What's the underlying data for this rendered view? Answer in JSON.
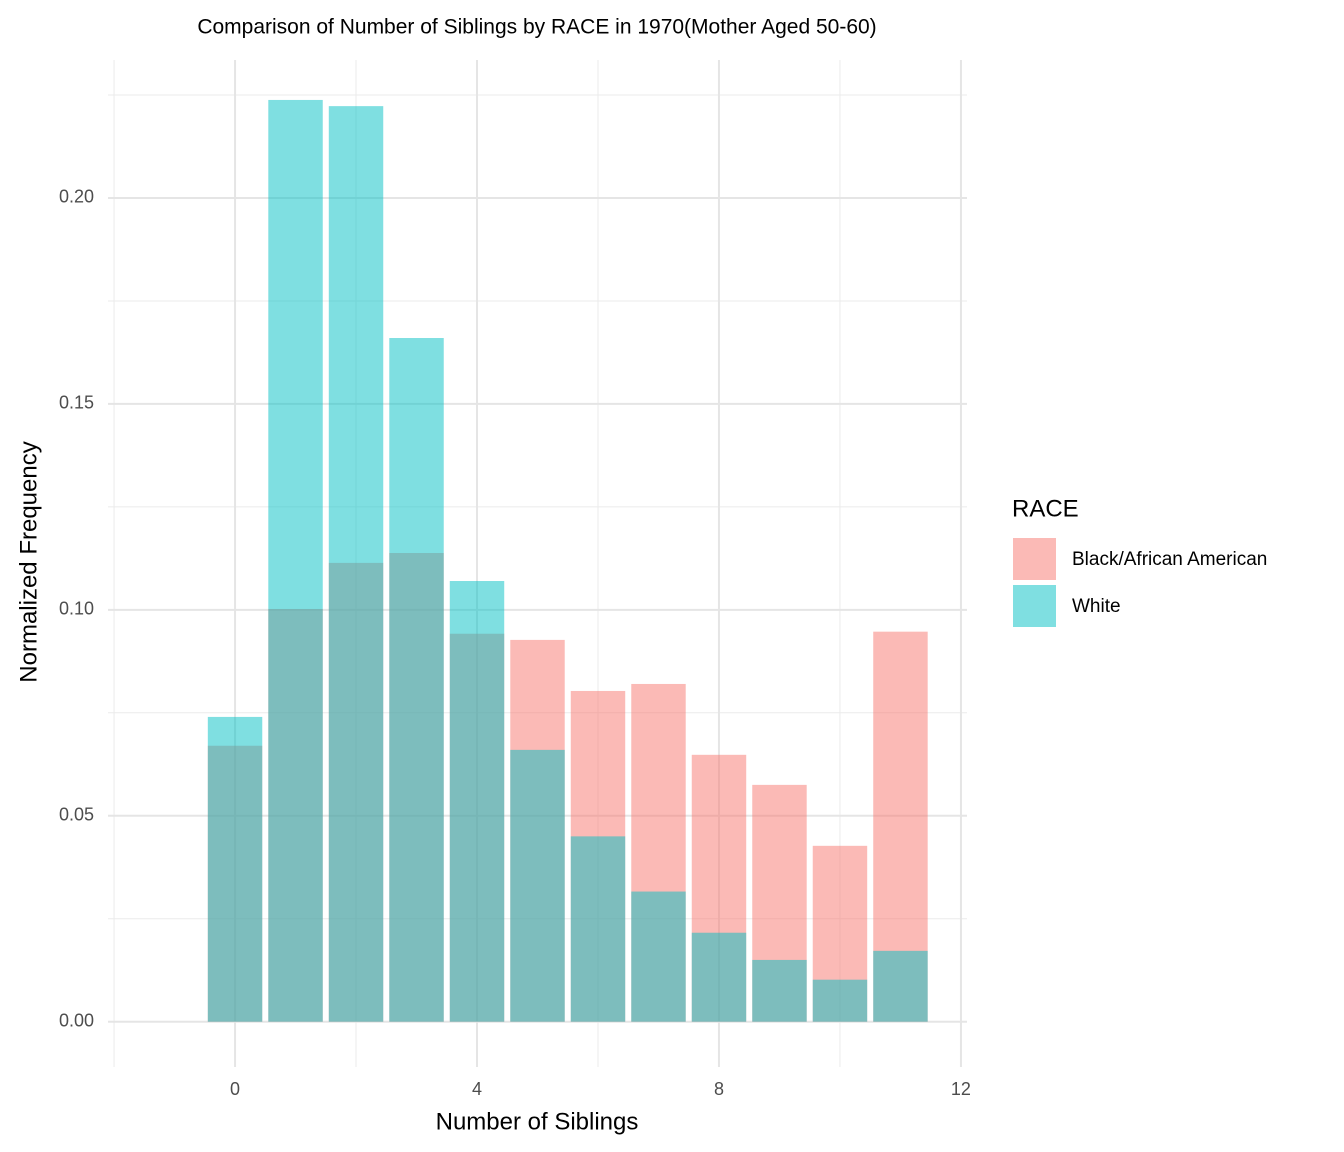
{
  "chart_data": {
    "type": "bar",
    "title": "Comparison of Number of Siblings by RACE in 1970(Mother Aged 50-60)",
    "x_label": "Number of Siblings",
    "y_label": "Normalized Frequency",
    "legend_title": "RACE",
    "legend_position": "right",
    "grid": true,
    "bar_width": 0.9,
    "opacity": 0.5,
    "x": [
      0,
      1,
      2,
      3,
      4,
      5,
      6,
      7,
      8,
      9,
      10,
      11
    ],
    "series": [
      {
        "name": "Black/African American",
        "color": "#F8766D",
        "values": [
          0.067,
          0.1002,
          0.1114,
          0.1138,
          0.0942,
          0.0927,
          0.0803,
          0.082,
          0.0648,
          0.0575,
          0.0427,
          0.0947
        ]
      },
      {
        "name": "White",
        "color": "#00BFC4",
        "values": [
          0.074,
          0.2238,
          0.2223,
          0.166,
          0.107,
          0.066,
          0.045,
          0.0316,
          0.0216,
          0.015,
          0.0102,
          0.0172
        ]
      }
    ],
    "xlim": [
      -2.1,
      12.1
    ],
    "xticks": [
      0,
      4,
      8,
      12
    ],
    "x_minor_ticks": [
      -2,
      2,
      6,
      10
    ],
    "ylim": [
      -0.011,
      0.2335
    ],
    "yticks": [
      {
        "value": 0,
        "label": "0.00"
      },
      {
        "value": 0.05,
        "label": "0.05"
      },
      {
        "value": 0.1,
        "label": "0.10"
      },
      {
        "value": 0.15,
        "label": "0.15"
      },
      {
        "value": 0.2,
        "label": "0.20"
      }
    ],
    "y_minor_ticks": [
      0.025,
      0.075,
      0.125,
      0.175,
      0.225
    ]
  }
}
